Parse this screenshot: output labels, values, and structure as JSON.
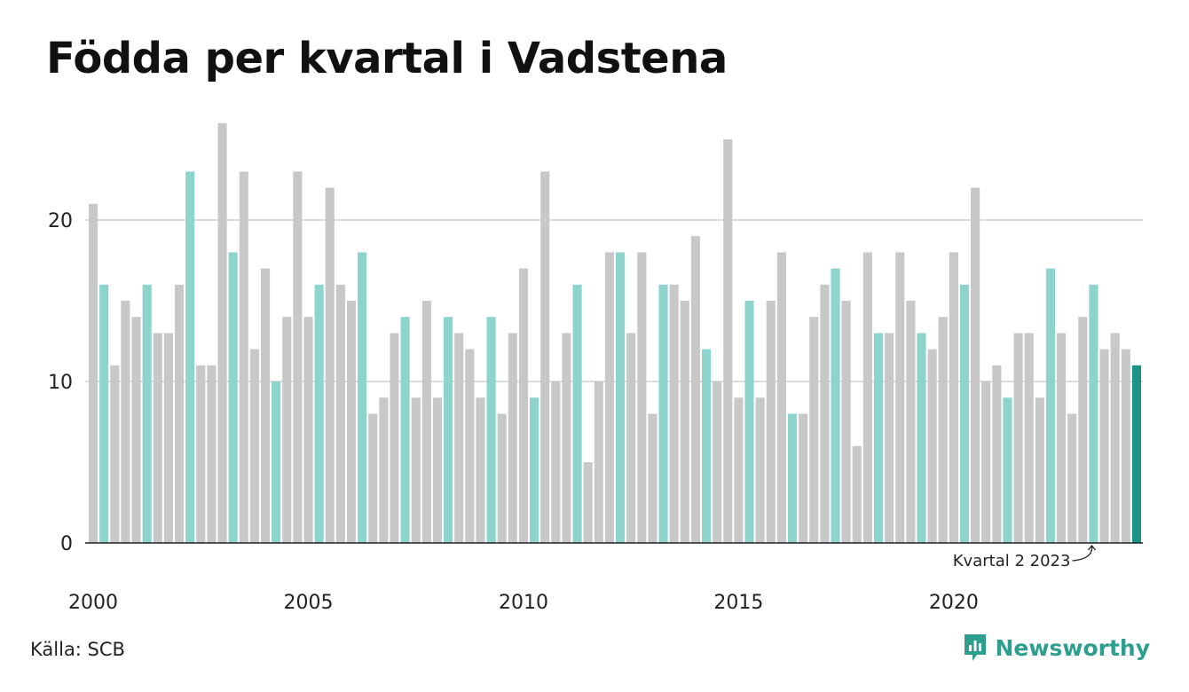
{
  "title": "Födda per kvartal i Vadstena",
  "source": "Källa: SCB",
  "brand": "Newsworthy",
  "colors": {
    "q2": "#8dd4cc",
    "other": "#c8c8c8",
    "highlight": "#1a9585",
    "grid": "#dcdcdc",
    "axis": "#222222",
    "brand": "#2e9f8f"
  },
  "chart_data": {
    "type": "bar",
    "title": "Födda per kvartal i Vadstena",
    "xlabel": "",
    "ylabel": "",
    "ylim": [
      0,
      26
    ],
    "yticks": [
      0,
      10,
      20
    ],
    "xticks": [
      "2000",
      "2005",
      "2010",
      "2015",
      "2020"
    ],
    "grid": true,
    "start_year": 2000,
    "quarters_per_year": 4,
    "categories": [
      "2000 Q1",
      "2000 Q2",
      "2000 Q3",
      "2000 Q4",
      "2001 Q1",
      "2001 Q2",
      "2001 Q3",
      "2001 Q4",
      "2002 Q1",
      "2002 Q2",
      "2002 Q3",
      "2002 Q4",
      "2003 Q1",
      "2003 Q2",
      "2003 Q3",
      "2003 Q4",
      "2004 Q1",
      "2004 Q2",
      "2004 Q3",
      "2004 Q4",
      "2005 Q1",
      "2005 Q2",
      "2005 Q3",
      "2005 Q4",
      "2006 Q1",
      "2006 Q2",
      "2006 Q3",
      "2006 Q4",
      "2007 Q1",
      "2007 Q2",
      "2007 Q3",
      "2007 Q4",
      "2008 Q1",
      "2008 Q2",
      "2008 Q3",
      "2008 Q4",
      "2009 Q1",
      "2009 Q2",
      "2009 Q3",
      "2009 Q4",
      "2010 Q1",
      "2010 Q2",
      "2010 Q3",
      "2010 Q4",
      "2011 Q1",
      "2011 Q2",
      "2011 Q3",
      "2011 Q4",
      "2012 Q1",
      "2012 Q2",
      "2012 Q3",
      "2012 Q4",
      "2013 Q1",
      "2013 Q2",
      "2013 Q3",
      "2013 Q4",
      "2014 Q1",
      "2014 Q2",
      "2014 Q3",
      "2014 Q4",
      "2015 Q1",
      "2015 Q2",
      "2015 Q3",
      "2015 Q4",
      "2016 Q1",
      "2016 Q2",
      "2016 Q3",
      "2016 Q4",
      "2017 Q1",
      "2017 Q2",
      "2017 Q3",
      "2017 Q4",
      "2018 Q1",
      "2018 Q2",
      "2018 Q3",
      "2018 Q4",
      "2019 Q1",
      "2019 Q2",
      "2019 Q3",
      "2019 Q4",
      "2020 Q1",
      "2020 Q2",
      "2020 Q3",
      "2020 Q4",
      "2021 Q1",
      "2021 Q2",
      "2021 Q3",
      "2021 Q4",
      "2022 Q1",
      "2022 Q2",
      "2022 Q3",
      "2022 Q4",
      "2023 Q1",
      "2023 Q2",
      "2023 Q3",
      "2023 Q4",
      "2024 Q1",
      "2024 Q2"
    ],
    "values": [
      21,
      16,
      11,
      15,
      14,
      16,
      13,
      13,
      16,
      23,
      11,
      11,
      26,
      18,
      23,
      12,
      17,
      10,
      14,
      23,
      14,
      16,
      22,
      16,
      15,
      18,
      8,
      9,
      13,
      14,
      9,
      15,
      9,
      14,
      13,
      12,
      9,
      14,
      8,
      13,
      17,
      9,
      23,
      10,
      13,
      16,
      5,
      10,
      18,
      18,
      13,
      18,
      8,
      16,
      16,
      15,
      19,
      12,
      10,
      25,
      9,
      15,
      9,
      15,
      18,
      8,
      8,
      14,
      16,
      17,
      15,
      6,
      18,
      13,
      13,
      18,
      15,
      13,
      12,
      14,
      18,
      16,
      22,
      10,
      11,
      9,
      13,
      13,
      9,
      17,
      13,
      8,
      14,
      16,
      12,
      13,
      12,
      11
    ],
    "highlight_index": 97,
    "annotation": {
      "text": "Kvartal 2 2023",
      "index": 93
    }
  }
}
